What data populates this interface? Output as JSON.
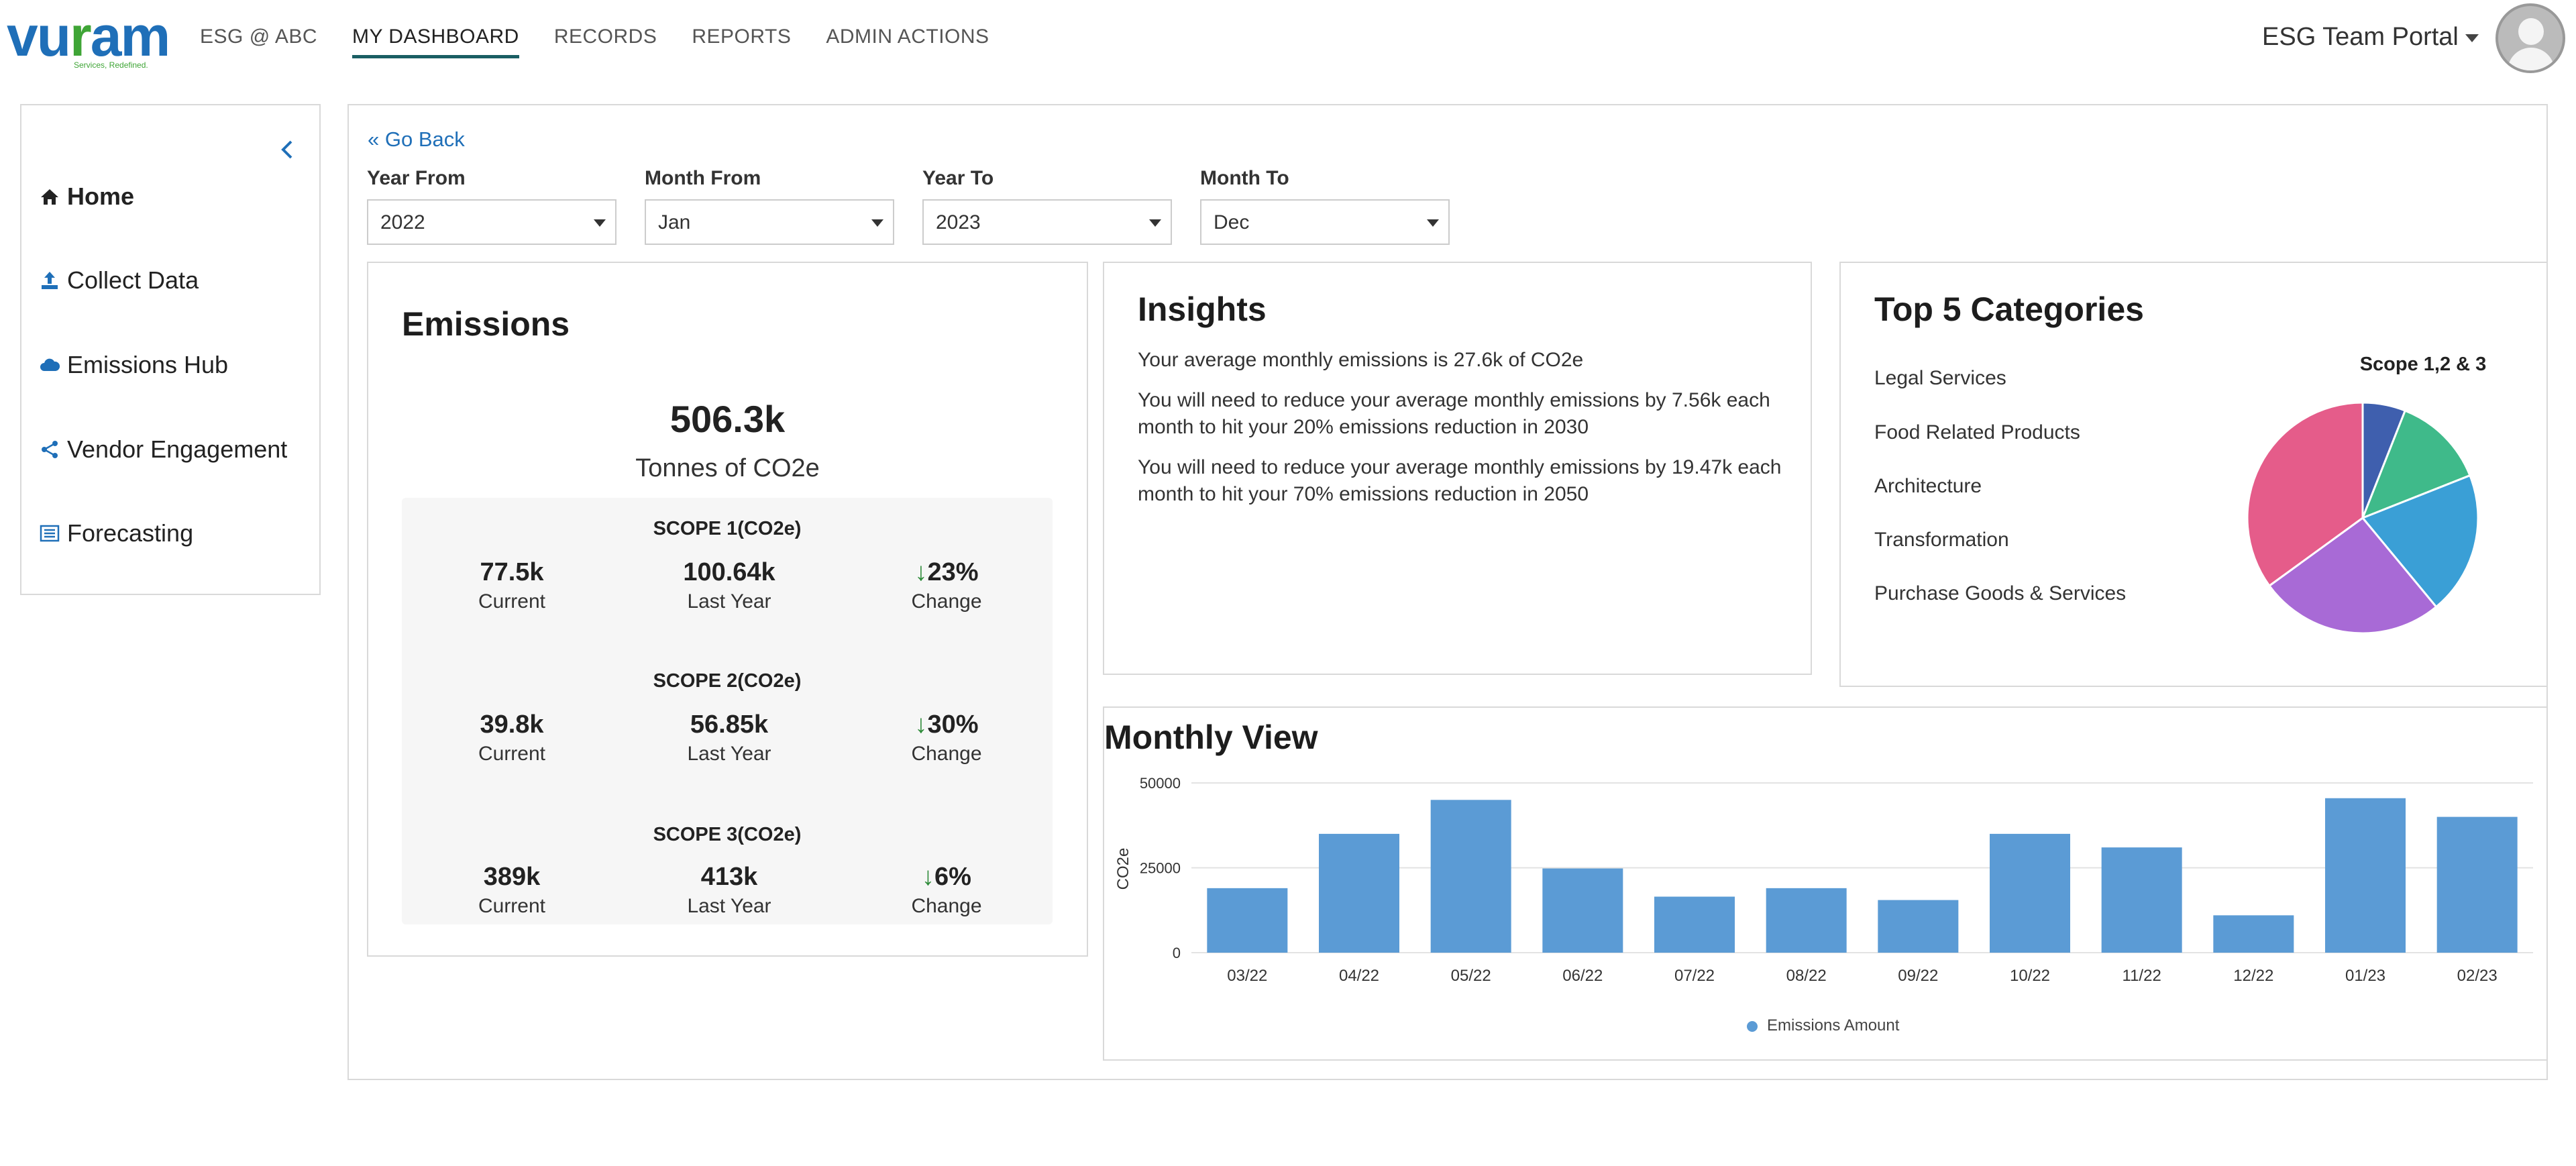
{
  "brand": {
    "logo_text_1": "vu",
    "logo_text_2": "am",
    "logo_tagline": "Services, Redefined."
  },
  "nav": {
    "items": [
      {
        "label": "ESG @ ABC",
        "active": false
      },
      {
        "label": "MY DASHBOARD",
        "active": true
      },
      {
        "label": "RECORDS",
        "active": false
      },
      {
        "label": "REPORTS",
        "active": false
      },
      {
        "label": "ADMIN ACTIONS",
        "active": false
      }
    ],
    "portal_label": "ESG Team Portal"
  },
  "sidebar": {
    "items": [
      {
        "label": "Home",
        "icon": "home-icon"
      },
      {
        "label": "Collect Data",
        "icon": "upload-icon"
      },
      {
        "label": "Emissions Hub",
        "icon": "cloud-icon"
      },
      {
        "label": "Vendor Engagement",
        "icon": "share-icon"
      },
      {
        "label": "Forecasting",
        "icon": "list-icon"
      }
    ]
  },
  "filters": {
    "go_back": "Go Back",
    "year_from": {
      "label": "Year From",
      "value": "2022"
    },
    "month_from": {
      "label": "Month From",
      "value": "Jan"
    },
    "year_to": {
      "label": "Year To",
      "value": "2023"
    },
    "month_to": {
      "label": "Month To",
      "value": "Dec"
    }
  },
  "emissions": {
    "title": "Emissions",
    "total": "506.3k",
    "unit": "Tonnes of CO2e",
    "current_label": "Current",
    "last_year_label": "Last Year",
    "change_label": "Change",
    "scopes": [
      {
        "title": "SCOPE 1(CO2e)",
        "current": "77.5k",
        "last_year": "100.64k",
        "change": "23%"
      },
      {
        "title": "SCOPE 2(CO2e)",
        "current": "39.8k",
        "last_year": "56.85k",
        "change": "30%"
      },
      {
        "title": "SCOPE 3(CO2e)",
        "current": "389k",
        "last_year": "413k",
        "change": "6%"
      }
    ]
  },
  "insights": {
    "title": "Insights",
    "lines": [
      "Your average monthly emissions is 27.6k of CO2e",
      "You will need to reduce your average monthly emissions by 7.56k each month to hit your 20% emissions reduction in 2030",
      "You will need to reduce your average monthly emissions by 19.47k each month to hit your 70% emissions reduction in 2050"
    ]
  },
  "top5": {
    "title": "Top 5 Categories",
    "categories": [
      "Legal Services",
      "Food Related Products",
      "Architecture",
      "Transformation",
      "Purchase Goods & Services"
    ],
    "pie_title": "Scope 1,2 & 3",
    "pie_colors": [
      "#3f5fae",
      "#3fba8a",
      "#3a9fd6",
      "#a86ad6",
      "#e55c8a"
    ],
    "pie_values": [
      6,
      13,
      20,
      26,
      35
    ]
  },
  "monthly": {
    "title": "Monthly View",
    "ylabel": "CO2e",
    "legend": "Emissions Amount",
    "bar_color": "#5b9bd5"
  },
  "chart_data": {
    "type": "bar",
    "categories": [
      "03/22",
      "04/22",
      "05/22",
      "06/22",
      "07/22",
      "08/22",
      "09/22",
      "10/22",
      "11/22",
      "12/22",
      "01/23",
      "02/23"
    ],
    "series": [
      {
        "name": "Emissions Amount",
        "values": [
          19000,
          35000,
          45000,
          24800,
          16500,
          19000,
          15500,
          35000,
          31000,
          11000,
          45500,
          40000
        ]
      }
    ],
    "ylabel": "CO2e",
    "ylim": [
      0,
      50000
    ],
    "yticks": [
      0,
      25000,
      50000
    ],
    "legend_position": "bottom"
  }
}
